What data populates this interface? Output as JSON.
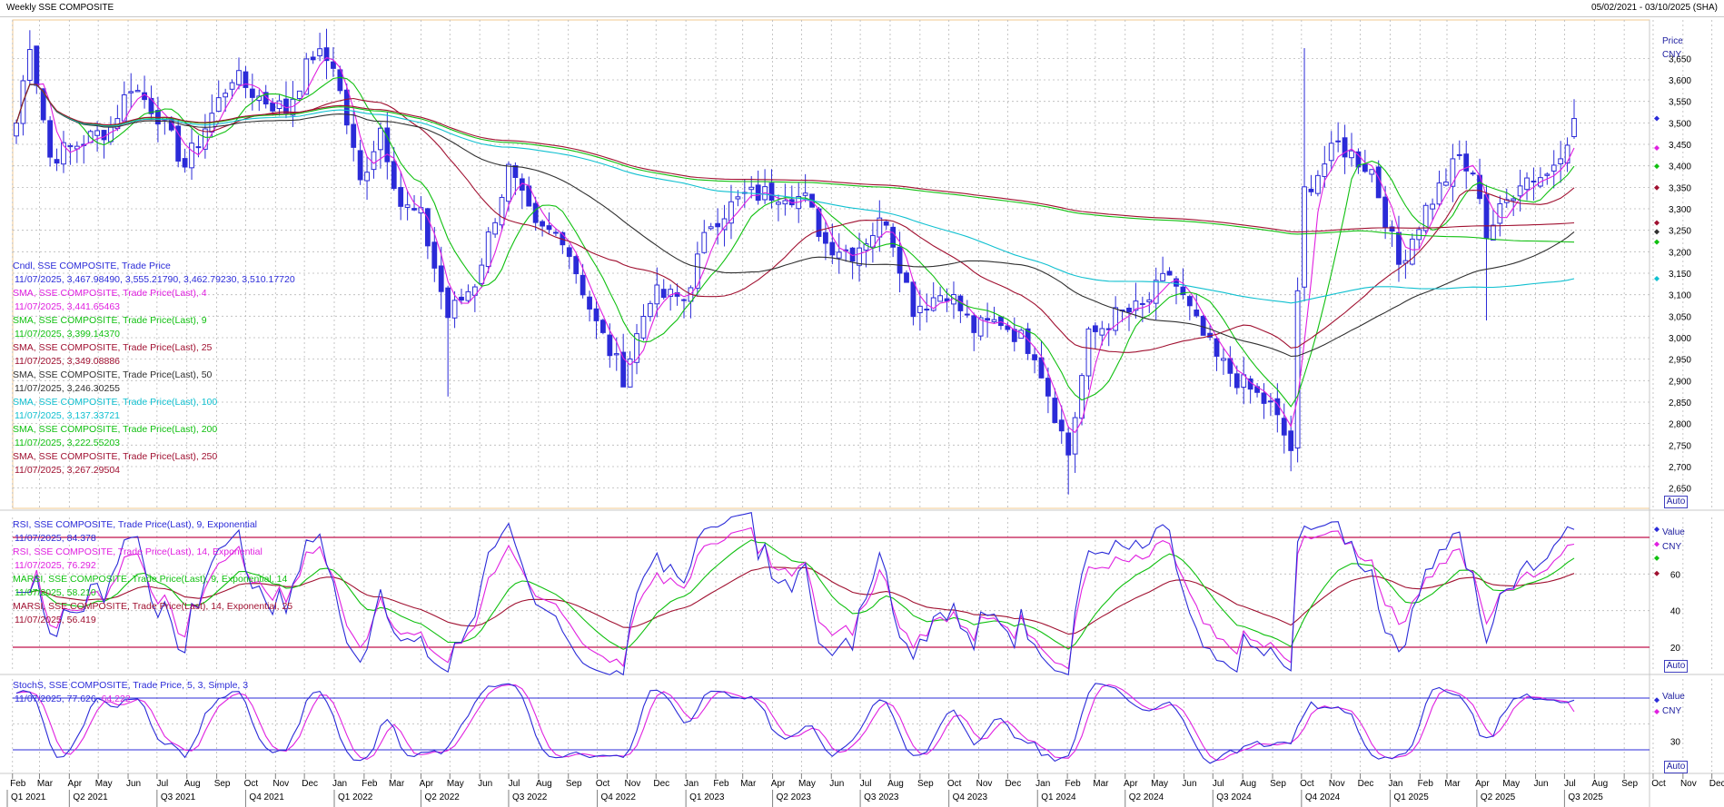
{
  "header": {
    "title": "Weekly SSE COMPOSITE",
    "range": "05/02/2021 - 03/10/2025 (SHA)"
  },
  "auto_label": "Auto",
  "colors": {
    "candle": "#2b2bd8",
    "sma4": "#e020e0",
    "sma9": "#10c010",
    "sma25": "#a01030",
    "sma50": "#303030",
    "sma100": "#10c0d0",
    "sma200": "#10c010",
    "sma250": "#a01030",
    "rsi9": "#2b2bd8",
    "rsi14": "#e020e0",
    "marsi9": "#10c010",
    "marsi14": "#a01030",
    "stoch_k": "#2b2bd8",
    "stoch_d": "#e020e0",
    "grid": "#b8b8b8",
    "level": "#c0104a"
  },
  "price_panel": {
    "axis_title": "Price",
    "axis_unit": "CNY",
    "ticks": [
      "3,650",
      "3,600",
      "3,550",
      "3,500",
      "3,450",
      "3,400",
      "3,350",
      "3,300",
      "3,250",
      "3,200",
      "3,150",
      "3,100",
      "3,050",
      "3,000",
      "2,950",
      "2,900",
      "2,850",
      "2,800",
      "2,750",
      "2,700",
      "2,650"
    ],
    "legend": [
      {
        "name": "Cndl, SSE COMPOSITE, Trade Price",
        "value": "11/07/2025, 3,467.98490, 3,555.21790, 3,462.79230, 3,510.17720"
      },
      {
        "name": "SMA, SSE COMPOSITE, Trade Price(Last), 4",
        "value": "11/07/2025, 3,441.65463"
      },
      {
        "name": "SMA, SSE COMPOSITE, Trade Price(Last), 9",
        "value": "11/07/2025, 3,399.14370"
      },
      {
        "name": "SMA, SSE COMPOSITE, Trade Price(Last), 25",
        "value": "11/07/2025, 3,349.08886"
      },
      {
        "name": "SMA, SSE COMPOSITE, Trade Price(Last), 50",
        "value": "11/07/2025, 3,246.30255"
      },
      {
        "name": "SMA, SSE COMPOSITE, Trade Price(Last), 100",
        "value": "11/07/2025, 3,137.33721"
      },
      {
        "name": "SMA, SSE COMPOSITE, Trade Price(Last), 200",
        "value": "11/07/2025, 3,222.55203"
      },
      {
        "name": "SMA, SSE COMPOSITE, Trade Price(Last), 250",
        "value": "11/07/2025, 3,267.29504"
      }
    ]
  },
  "rsi_panel": {
    "axis_title": "Value",
    "axis_unit": "CNY",
    "ticks": [
      "60",
      "40",
      "20"
    ],
    "levels": [
      80,
      20
    ],
    "legend": [
      {
        "name": "RSI, SSE COMPOSITE, Trade Price(Last), 9, Exponential",
        "value": "11/07/2025, 84.378"
      },
      {
        "name": "RSI, SSE COMPOSITE, Trade Price(Last), 14, Exponential",
        "value": "11/07/2025, 76.292"
      },
      {
        "name": "MARSI, SSE COMPOSITE, Trade Price(Last), 9, Exponential, 14",
        "value": "11/07/2025, 58.210"
      },
      {
        "name": "MARSI, SSE COMPOSITE, Trade Price(Last), 14, Exponential, 25",
        "value": "11/07/2025, 56.419"
      }
    ]
  },
  "stoch_panel": {
    "axis_title": "Value",
    "axis_unit": "CNY",
    "ticks": [
      "30"
    ],
    "levels": [
      80,
      20
    ],
    "legend": [
      {
        "name": "StochS, SSE COMPOSITE, Trade Price, 5, 3, Simple, 3",
        "value_k": "11/07/2025, 77.626,",
        "value_d": "64.222"
      }
    ]
  },
  "x_axis": {
    "months": [
      "Feb",
      "Mar",
      "Apr",
      "May",
      "Jun",
      "Jul",
      "Aug",
      "Sep",
      "Oct",
      "Nov",
      "Dec",
      "Jan",
      "Feb",
      "Mar",
      "Apr",
      "May",
      "Jun",
      "Jul",
      "Aug",
      "Sep",
      "Oct",
      "Nov",
      "Dec",
      "Jan",
      "Feb",
      "Mar",
      "Apr",
      "May",
      "Jun",
      "Jul",
      "Aug",
      "Sep",
      "Oct",
      "Nov",
      "Dec",
      "Jan",
      "Feb",
      "Mar",
      "Apr",
      "May",
      "Jun",
      "Jul",
      "Aug",
      "Sep",
      "Oct",
      "Nov",
      "Dec",
      "Jan",
      "Feb",
      "Mar",
      "Apr",
      "May",
      "Jun",
      "Jul",
      "Aug",
      "Sep",
      "Oct",
      "Nov",
      "Dec",
      "Jan",
      "Feb",
      "Mar",
      "Apr",
      "May",
      "Jun",
      "Jul",
      "Aug",
      "Sep",
      "Oct"
    ],
    "quarters": [
      "Q1 2021",
      "Q2 2021",
      "Q3 2021",
      "Q4 2021",
      "Q1 2022",
      "Q2 2022",
      "Q3 2022",
      "Q4 2022",
      "Q1 2023",
      "Q2 2023",
      "Q3 2023",
      "Q4 2023",
      "Q1 2024",
      "Q2 2024",
      "Q3 2024",
      "Q4 2024",
      "Q1 2025",
      "Q2 2025",
      "Q3 2025"
    ]
  },
  "chart_data": {
    "type": "candlestick",
    "title": "Weekly SSE COMPOSITE",
    "ylabel": "Price CNY",
    "ylim": [
      2620,
      3720
    ],
    "start_week": "2021-02-05",
    "weekly_close_anchors": [
      [
        "2021-02-05",
        3500
      ],
      [
        "2021-02-19",
        3690
      ],
      [
        "2021-03-12",
        3420
      ],
      [
        "2021-04-09",
        3450
      ],
      [
        "2021-05-14",
        3490
      ],
      [
        "2021-06-04",
        3590
      ],
      [
        "2021-07-02",
        3520
      ],
      [
        "2021-07-30",
        3400
      ],
      [
        "2021-08-27",
        3520
      ],
      [
        "2021-09-17",
        3610
      ],
      [
        "2021-10-15",
        3560
      ],
      [
        "2021-11-12",
        3530
      ],
      [
        "2021-12-10",
        3660
      ],
      [
        "2021-12-31",
        3640
      ],
      [
        "2022-01-28",
        3360
      ],
      [
        "2022-02-18",
        3490
      ],
      [
        "2022-03-11",
        3310
      ],
      [
        "2022-04-01",
        3280
      ],
      [
        "2022-04-29",
        3050
      ],
      [
        "2022-05-27",
        3130
      ],
      [
        "2022-07-01",
        3390
      ],
      [
        "2022-07-29",
        3250
      ],
      [
        "2022-08-26",
        3240
      ],
      [
        "2022-09-30",
        3030
      ],
      [
        "2022-10-28",
        2910
      ],
      [
        "2022-11-25",
        3100
      ],
      [
        "2022-12-30",
        3090
      ],
      [
        "2023-01-27",
        3270
      ],
      [
        "2023-03-03",
        3330
      ],
      [
        "2023-04-14",
        3340
      ],
      [
        "2023-05-05",
        3320
      ],
      [
        "2023-05-26",
        3220
      ],
      [
        "2023-06-23",
        3200
      ],
      [
        "2023-07-28",
        3280
      ],
      [
        "2023-08-25",
        3070
      ],
      [
        "2023-09-29",
        3110
      ],
      [
        "2023-10-27",
        3020
      ],
      [
        "2023-11-24",
        3040
      ],
      [
        "2023-12-29",
        2970
      ],
      [
        "2024-02-02",
        2730
      ],
      [
        "2024-02-23",
        3000
      ],
      [
        "2024-03-22",
        3050
      ],
      [
        "2024-04-19",
        3070
      ],
      [
        "2024-05-17",
        3150
      ],
      [
        "2024-06-14",
        3030
      ],
      [
        "2024-07-05",
        2950
      ],
      [
        "2024-08-02",
        2890
      ],
      [
        "2024-08-30",
        2840
      ],
      [
        "2024-09-20",
        2740
      ],
      [
        "2024-09-27",
        3090
      ],
      [
        "2024-10-04",
        3340
      ],
      [
        "2024-11-08",
        3450
      ],
      [
        "2024-12-13",
        3390
      ],
      [
        "2025-01-10",
        3170
      ],
      [
        "2025-02-07",
        3300
      ],
      [
        "2025-03-14",
        3420
      ],
      [
        "2025-04-04",
        3340
      ],
      [
        "2025-04-11",
        3240
      ],
      [
        "2025-05-16",
        3370
      ],
      [
        "2025-06-13",
        3380
      ],
      [
        "2025-07-04",
        3470
      ],
      [
        "2025-07-11",
        3510
      ]
    ],
    "last_candle": {
      "date": "11/07/2025",
      "open": 3467.9849,
      "high": 3555.2179,
      "low": 3462.7923,
      "close": 3510.1772
    },
    "sma_last": {
      "4": 3441.65463,
      "9": 3399.1437,
      "25": 3349.08886,
      "50": 3246.30255,
      "100": 3137.33721,
      "200": 3222.55203,
      "250": 3267.29504
    },
    "rsi_last": {
      "rsi9": 84.378,
      "rsi14": 76.292,
      "marsi9": 58.21,
      "marsi14": 56.419
    },
    "stoch_last": {
      "k": 77.626,
      "d": 64.222
    },
    "grid": true
  }
}
